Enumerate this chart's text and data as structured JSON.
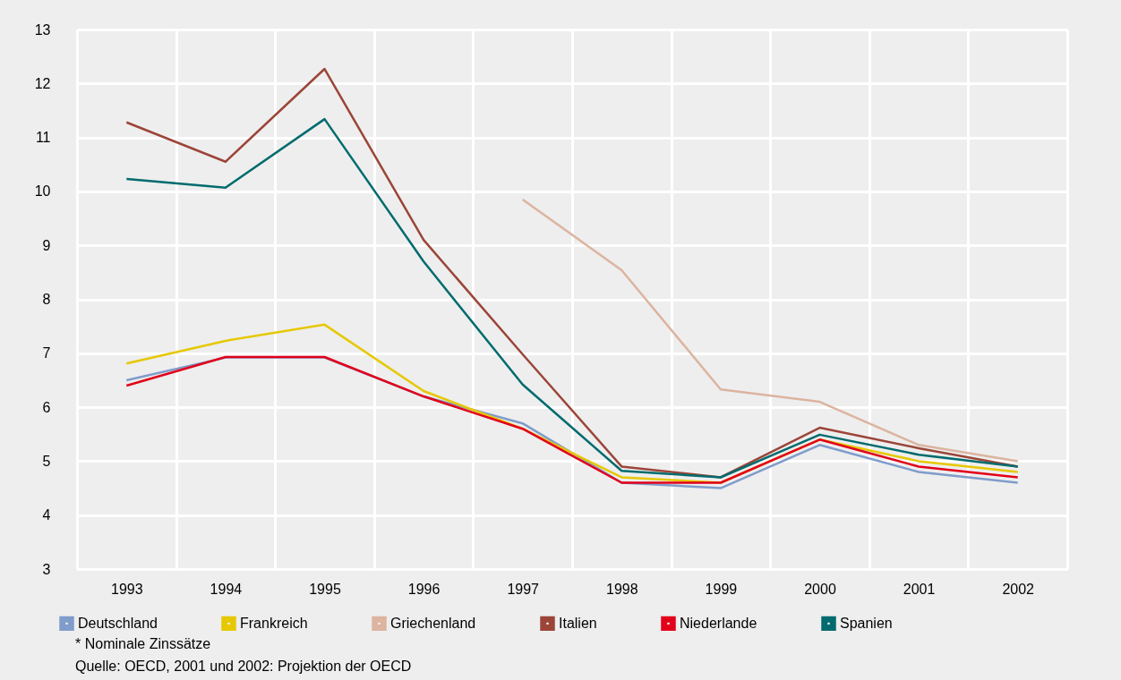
{
  "chart_data": {
    "type": "line",
    "categories": [
      "1993",
      "1994",
      "1995",
      "1996",
      "1997",
      "1998",
      "1999",
      "2000",
      "2001",
      "2002"
    ],
    "ylim": [
      3,
      13
    ],
    "yticks": [
      3,
      4,
      5,
      6,
      7,
      8,
      9,
      10,
      11,
      12,
      13
    ],
    "grid": true,
    "legend": "bottom left",
    "series": [
      {
        "name": "Deutschland",
        "color": "#7f9ccb",
        "values": [
          6.5,
          6.92,
          6.92,
          6.2,
          5.7,
          4.6,
          4.5,
          5.3,
          4.8,
          4.6
        ]
      },
      {
        "name": "Frankreich",
        "color": "#e6c800",
        "values": [
          6.81,
          7.23,
          7.53,
          6.3,
          5.6,
          4.7,
          4.6,
          5.4,
          5.0,
          4.8
        ]
      },
      {
        "name": "Griechenland",
        "color": "#dcb4a0",
        "values": [
          null,
          null,
          null,
          null,
          9.85,
          8.54,
          6.33,
          6.1,
          5.3,
          5.0
        ]
      },
      {
        "name": "Italien",
        "color": "#9b4538",
        "values": [
          11.28,
          10.55,
          12.27,
          9.1,
          6.98,
          4.9,
          4.7,
          5.62,
          5.24,
          4.9
        ]
      },
      {
        "name": "Niederlande",
        "color": "#e2001a",
        "values": [
          6.4,
          6.93,
          6.93,
          6.2,
          5.6,
          4.6,
          4.6,
          5.4,
          4.9,
          4.7
        ]
      },
      {
        "name": "Spanien",
        "color": "#006b6e",
        "values": [
          10.23,
          10.07,
          11.34,
          8.7,
          6.42,
          4.82,
          4.7,
          5.49,
          5.12,
          4.9
        ]
      }
    ],
    "annotations": [
      "* Nominale Zinssätze",
      "Quelle: OECD, 2001 und 2002: Projektion der OECD"
    ]
  }
}
